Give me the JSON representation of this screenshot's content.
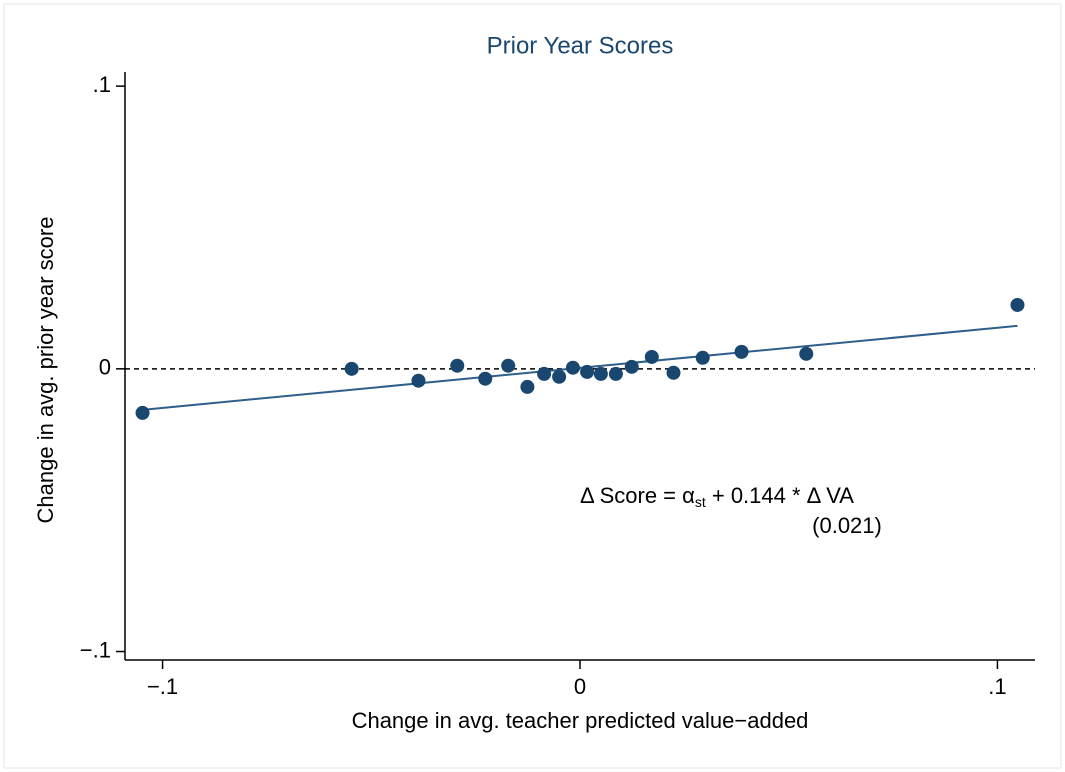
{
  "chart_data": {
    "type": "scatter",
    "title": "Prior Year Scores",
    "xlabel": "Change in avg. teacher predicted value−added",
    "ylabel": "Change in avg. prior year score",
    "x": [
      -0.1048,
      -0.0547,
      -0.0387,
      -0.0294,
      -0.0227,
      -0.0172,
      -0.0126,
      -0.0086,
      -0.005,
      -0.0017,
      0.0017,
      0.005,
      0.0086,
      0.0124,
      0.0172,
      0.0224,
      0.0294,
      0.0387,
      0.0542,
      0.1048
    ],
    "values": [
      -0.0156,
      0.0,
      -0.0042,
      0.0011,
      -0.0035,
      0.0011,
      -0.0064,
      -0.0018,
      -0.0028,
      0.0004,
      -0.0011,
      -0.0018,
      -0.0018,
      0.0007,
      0.0042,
      -0.0014,
      0.0039,
      0.006,
      0.0053,
      0.0226
    ],
    "color": "#1a476f",
    "fit": {
      "x": [
        -0.1048,
        0.1048
      ],
      "y": [
        -0.0145,
        0.0152
      ],
      "color": "#2d5f8a"
    },
    "hline": 0,
    "xlim": [
      -0.109,
      0.109
    ],
    "ylim": [
      -0.103,
      0.105
    ],
    "xticks": [
      {
        "value": -0.1,
        "label": "−.1"
      },
      0,
      {
        "value": 0.1,
        "label": ".1"
      }
    ],
    "yticks": [
      {
        "value": -0.1,
        "label": "−.1"
      },
      0,
      {
        "value": 0.1,
        "label": ".1"
      }
    ],
    "annotation": {
      "prefix": "Δ Score = α",
      "subscript": "st",
      "suffix": " +  0.144 * Δ VA",
      "se": "(0.021)"
    }
  }
}
